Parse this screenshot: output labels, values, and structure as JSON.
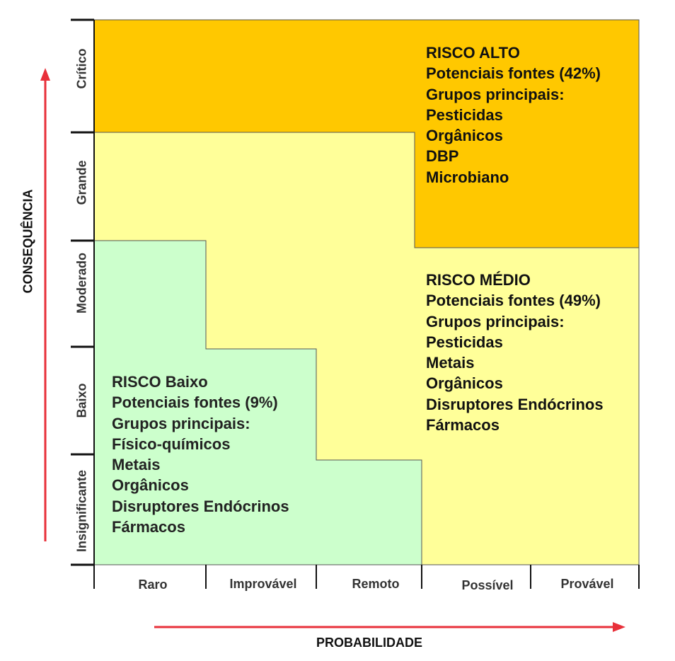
{
  "y_axis": {
    "title": "CONSEQUÊNCIA",
    "levels": [
      "Crítico",
      "Grande",
      "Moderado",
      "Baixo",
      "Insignificante"
    ]
  },
  "x_axis": {
    "title": "PROBABILIDADE",
    "levels": [
      "Raro",
      "Improvável",
      "Remoto",
      "Possível",
      "Provável"
    ]
  },
  "zones": {
    "high": {
      "title": "RISCO ALTO",
      "sources": "Potenciais fontes (42%)",
      "groups_label": "Grupos principais:",
      "groups": [
        "Pesticidas",
        "Orgânicos",
        "DBP",
        "Microbiano"
      ]
    },
    "medium": {
      "title": "RISCO MÉDIO",
      "sources": "Potenciais fontes (49%)",
      "groups_label": "Grupos principais:",
      "groups": [
        "Pesticidas",
        "Metais",
        "Orgânicos",
        "Disruptores Endócrinos",
        "Fármacos"
      ]
    },
    "low": {
      "title": "RISCO Baixo",
      "sources": "Potenciais fontes (9%)",
      "groups_label": "Grupos principais:",
      "groups": [
        "Físico-químicos",
        "Metais",
        "Orgânicos",
        "Disruptores Endócrinos",
        "Fármacos"
      ]
    }
  },
  "colors": {
    "high": "#FFC800",
    "medium": "#FFFF99",
    "low": "#CCFFCC",
    "arrows": "#E8303A"
  }
}
